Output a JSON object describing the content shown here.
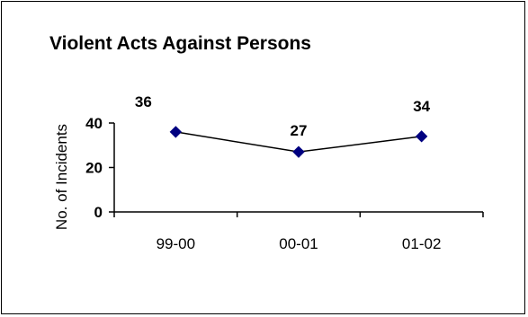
{
  "chart_data": {
    "type": "line",
    "title": "Violent Acts Against Persons",
    "xlabel": "",
    "ylabel": "No. of Incidents",
    "categories": [
      "99-00",
      "00-01",
      "01-02"
    ],
    "series": [
      {
        "values": [
          36,
          27,
          34
        ]
      }
    ],
    "data_labels": [
      "36",
      "27",
      "34"
    ],
    "yticks": [
      "0",
      "20",
      "40"
    ],
    "ylim": [
      0,
      40
    ],
    "grid": false,
    "legend": "none",
    "colors": {
      "line": "#000000",
      "marker": "#000080"
    }
  }
}
